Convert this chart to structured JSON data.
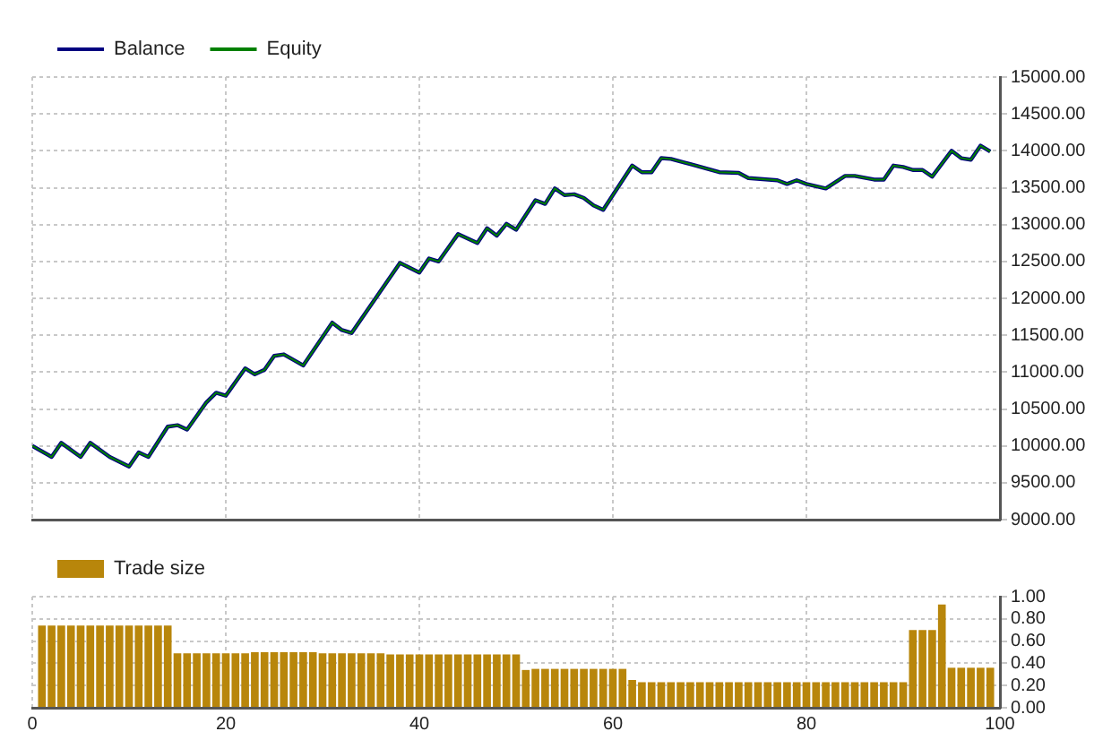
{
  "chart_data": [
    {
      "type": "line",
      "x": [
        0,
        2,
        3,
        5,
        6,
        8,
        10,
        11,
        12,
        14,
        15,
        16,
        18,
        19,
        20,
        22,
        23,
        24,
        25,
        26,
        28,
        31,
        32,
        33,
        38,
        40,
        41,
        42,
        44,
        46,
        47,
        48,
        49,
        50,
        52,
        53,
        54,
        55,
        56,
        57,
        58,
        59,
        62,
        63,
        64,
        65,
        66,
        68,
        71,
        73,
        74,
        77,
        78,
        79,
        80,
        82,
        84,
        85,
        87,
        88,
        89,
        90,
        91,
        92,
        93,
        95,
        96,
        97,
        98,
        99
      ],
      "series": [
        {
          "name": "Balance",
          "color": "#000080",
          "values": [
            10000,
            9850,
            10040,
            9850,
            10040,
            9850,
            9720,
            9910,
            9850,
            10260,
            10280,
            10220,
            10590,
            10720,
            10680,
            11050,
            10970,
            11030,
            11220,
            11240,
            11090,
            11670,
            11570,
            11530,
            12480,
            12350,
            12540,
            12500,
            12870,
            12750,
            12950,
            12850,
            13010,
            12930,
            13330,
            13280,
            13490,
            13400,
            13410,
            13360,
            13260,
            13200,
            13800,
            13710,
            13710,
            13900,
            13890,
            13820,
            13710,
            13700,
            13630,
            13600,
            13550,
            13600,
            13550,
            13490,
            13660,
            13660,
            13610,
            13610,
            13800,
            13780,
            13740,
            13740,
            13650,
            14000,
            13900,
            13880,
            14070,
            13990
          ]
        },
        {
          "name": "Equity",
          "color": "#008000",
          "values": [
            10000,
            9850,
            10040,
            9850,
            10040,
            9850,
            9720,
            9910,
            9850,
            10260,
            10280,
            10220,
            10590,
            10720,
            10680,
            11050,
            10970,
            11030,
            11220,
            11240,
            11090,
            11670,
            11570,
            11530,
            12480,
            12350,
            12540,
            12500,
            12870,
            12750,
            12950,
            12850,
            13010,
            12930,
            13330,
            13280,
            13490,
            13400,
            13410,
            13360,
            13260,
            13200,
            13800,
            13710,
            13710,
            13900,
            13890,
            13820,
            13710,
            13700,
            13630,
            13600,
            13550,
            13600,
            13550,
            13490,
            13660,
            13660,
            13610,
            13610,
            13800,
            13780,
            13740,
            13740,
            13650,
            14000,
            13900,
            13880,
            14070,
            13990
          ]
        }
      ],
      "xlim": [
        0,
        100
      ],
      "xticks": [
        0,
        20,
        40,
        60,
        80,
        100
      ],
      "ylim": [
        9000,
        15000
      ],
      "yticks": [
        {
          "value": 9000,
          "label": "9000.00"
        },
        {
          "value": 9500,
          "label": "9500.00"
        },
        {
          "value": 10000,
          "label": "10000.00"
        },
        {
          "value": 10500,
          "label": "10500.00"
        },
        {
          "value": 11000,
          "label": "11000.00"
        },
        {
          "value": 11500,
          "label": "11500.00"
        },
        {
          "value": 12000,
          "label": "12000.00"
        },
        {
          "value": 12500,
          "label": "12500.00"
        },
        {
          "value": 13000,
          "label": "13000.00"
        },
        {
          "value": 13500,
          "label": "13500.00"
        },
        {
          "value": 14000,
          "label": "14000.00"
        },
        {
          "value": 14500,
          "label": "14500.00"
        },
        {
          "value": 15000,
          "label": "15000.00"
        }
      ],
      "grid": true,
      "legend": "top left",
      "tick_labels": "y"
    },
    {
      "type": "bar",
      "x": [
        1,
        2,
        3,
        4,
        5,
        6,
        7,
        8,
        9,
        10,
        11,
        12,
        13,
        14,
        15,
        16,
        17,
        18,
        19,
        20,
        21,
        22,
        23,
        24,
        25,
        26,
        27,
        28,
        29,
        30,
        31,
        32,
        33,
        34,
        35,
        36,
        37,
        38,
        39,
        40,
        41,
        42,
        43,
        44,
        45,
        46,
        47,
        48,
        49,
        50,
        51,
        52,
        53,
        54,
        55,
        56,
        57,
        58,
        59,
        60,
        61,
        62,
        63,
        64,
        65,
        66,
        67,
        68,
        69,
        70,
        71,
        72,
        73,
        74,
        75,
        76,
        77,
        78,
        79,
        80,
        81,
        82,
        83,
        84,
        85,
        86,
        87,
        88,
        89,
        90,
        91,
        92,
        93,
        94,
        95,
        96,
        97,
        98,
        99
      ],
      "series": [
        {
          "name": "Trade size",
          "color": "#b8860b",
          "values": [
            0.74,
            0.74,
            0.74,
            0.74,
            0.74,
            0.74,
            0.74,
            0.74,
            0.74,
            0.74,
            0.74,
            0.74,
            0.74,
            0.74,
            0.49,
            0.49,
            0.49,
            0.49,
            0.49,
            0.49,
            0.49,
            0.49,
            0.5,
            0.5,
            0.5,
            0.5,
            0.5,
            0.5,
            0.5,
            0.49,
            0.49,
            0.49,
            0.49,
            0.49,
            0.49,
            0.49,
            0.48,
            0.48,
            0.48,
            0.48,
            0.48,
            0.48,
            0.48,
            0.48,
            0.48,
            0.48,
            0.48,
            0.48,
            0.48,
            0.48,
            0.34,
            0.35,
            0.35,
            0.35,
            0.35,
            0.35,
            0.35,
            0.35,
            0.35,
            0.35,
            0.35,
            0.25,
            0.23,
            0.23,
            0.23,
            0.23,
            0.23,
            0.23,
            0.23,
            0.23,
            0.23,
            0.23,
            0.23,
            0.23,
            0.23,
            0.23,
            0.23,
            0.23,
            0.23,
            0.23,
            0.23,
            0.23,
            0.23,
            0.23,
            0.23,
            0.23,
            0.23,
            0.23,
            0.23,
            0.23,
            0.7,
            0.7,
            0.7,
            0.93,
            0.36,
            0.36,
            0.36,
            0.36,
            0.36
          ]
        }
      ],
      "xlim": [
        0,
        100
      ],
      "xticks": [
        0,
        20,
        40,
        60,
        80,
        100
      ],
      "legend": "top left",
      "ylim": [
        0,
        1
      ],
      "yticks": [
        {
          "value": 0,
          "label": "0.00"
        },
        {
          "value": 0.2,
          "label": "0.20"
        },
        {
          "value": 0.4,
          "label": "0.40"
        },
        {
          "value": 0.6,
          "label": "0.60"
        },
        {
          "value": 0.8,
          "label": "0.80"
        },
        {
          "value": 1,
          "label": "1.00"
        }
      ],
      "grid": true
    }
  ]
}
